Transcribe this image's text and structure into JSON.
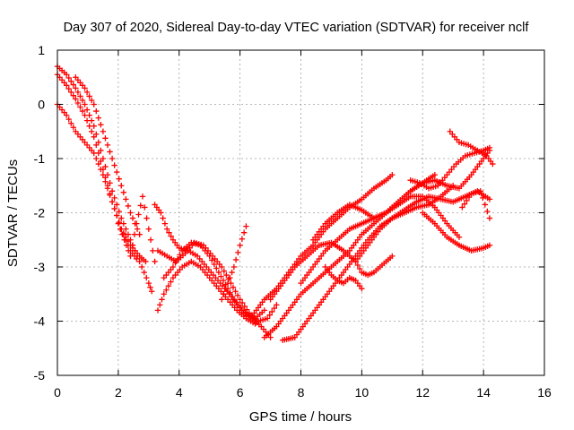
{
  "chart_data": {
    "type": "scatter",
    "title": "Day 307 of 2020, Sidereal Day-to-day VTEC variation (SDTVAR) for receiver nclf",
    "xlabel": "GPS time / hours",
    "ylabel": "SDTVAR / TECUs",
    "xlim": [
      0,
      16
    ],
    "ylim": [
      -5,
      1
    ],
    "xticks": [
      0,
      2,
      4,
      6,
      8,
      10,
      12,
      14,
      16
    ],
    "yticks": [
      1,
      0,
      -1,
      -2,
      -3,
      -4,
      -5
    ],
    "grid": true,
    "marker": "+",
    "color": "#ff0000",
    "series": [
      {
        "x": [
          0.0,
          0.3,
          0.6,
          0.9,
          1.2,
          1.5,
          1.8,
          2.1,
          2.4,
          2.7,
          3.0,
          3.1
        ],
        "y": [
          0.7,
          0.55,
          0.3,
          0.0,
          -0.4,
          -1.0,
          -1.6,
          -2.1,
          -2.5,
          -2.9,
          -3.3,
          -3.45
        ]
      },
      {
        "x": [
          0.0,
          0.3,
          0.6,
          0.9,
          1.2,
          1.5,
          1.8,
          2.1,
          2.4,
          2.7,
          2.9
        ],
        "y": [
          0.55,
          0.35,
          0.1,
          -0.2,
          -0.6,
          -1.2,
          -1.8,
          -2.3,
          -2.6,
          -2.8,
          -2.9
        ]
      },
      {
        "x": [
          0.0,
          0.3,
          0.6,
          0.9,
          1.2,
          1.5,
          1.8,
          2.1,
          2.4,
          2.6
        ],
        "y": [
          0.0,
          -0.2,
          -0.5,
          -0.7,
          -0.9,
          -1.3,
          -1.8,
          -2.3,
          -2.7,
          -2.85
        ]
      },
      {
        "x": [
          0.6,
          0.9,
          1.2,
          1.5,
          1.8,
          2.1,
          2.4,
          2.7
        ],
        "y": [
          0.5,
          0.3,
          0.0,
          -0.5,
          -1.0,
          -1.5,
          -2.0,
          -2.4
        ]
      },
      {
        "x": [
          2.0,
          2.2,
          2.4,
          2.6,
          2.8,
          3.0,
          3.2
        ],
        "y": [
          -2.2,
          -2.5,
          -2.8,
          -2.2,
          -1.7,
          -2.3,
          -2.9
        ]
      },
      {
        "x": [
          3.2,
          3.4,
          3.6,
          3.8,
          4.0,
          4.3,
          4.6,
          4.9,
          5.2,
          5.5,
          5.8,
          6.1,
          6.4,
          6.7,
          7.0
        ],
        "y": [
          -1.85,
          -2.0,
          -2.3,
          -2.5,
          -2.65,
          -2.7,
          -2.8,
          -3.0,
          -3.2,
          -3.4,
          -3.6,
          -3.8,
          -3.95,
          -4.1,
          -4.3
        ]
      },
      {
        "x": [
          3.3,
          3.5,
          3.8,
          4.1,
          4.4,
          4.7,
          5.0,
          5.3,
          5.6,
          5.9,
          6.2,
          6.5
        ],
        "y": [
          -3.8,
          -3.5,
          -3.2,
          -3.0,
          -2.9,
          -3.0,
          -3.2,
          -3.4,
          -3.6,
          -3.8,
          -3.95,
          -4.05
        ]
      },
      {
        "x": [
          3.5,
          3.8,
          4.1,
          4.4,
          4.7,
          5.0,
          5.3,
          5.6,
          5.9,
          6.2,
          6.5,
          6.8
        ],
        "y": [
          -3.2,
          -3.0,
          -2.7,
          -2.55,
          -2.6,
          -2.8,
          -3.1,
          -3.4,
          -3.7,
          -3.9,
          -3.95,
          -3.8
        ]
      },
      {
        "x": [
          3.3,
          3.6,
          3.9,
          4.2,
          4.5,
          4.8,
          5.1,
          5.4,
          5.7,
          6.0,
          6.3,
          6.6,
          6.9,
          7.2
        ],
        "y": [
          -2.7,
          -2.8,
          -2.9,
          -2.75,
          -2.55,
          -2.6,
          -2.8,
          -3.0,
          -3.3,
          -3.6,
          -3.85,
          -4.0,
          -3.95,
          -3.7
        ]
      },
      {
        "x": [
          5.4,
          5.6,
          5.8,
          6.0,
          6.2
        ],
        "y": [
          -3.6,
          -3.3,
          -3.0,
          -2.6,
          -2.25
        ]
      },
      {
        "x": [
          6.4,
          6.8,
          7.2,
          7.6,
          8.0,
          8.4,
          8.8,
          9.2,
          9.6,
          10.0,
          10.4,
          10.8,
          11.0
        ],
        "y": [
          -3.9,
          -3.6,
          -3.4,
          -3.1,
          -2.8,
          -2.6,
          -2.3,
          -2.1,
          -1.9,
          -1.75,
          -1.55,
          -1.4,
          -1.3
        ]
      },
      {
        "x": [
          6.8,
          7.2,
          7.6,
          8.0,
          8.4,
          8.8,
          9.2,
          9.6,
          10.0,
          10.4,
          10.8,
          11.2,
          11.6,
          12.0,
          12.4
        ],
        "y": [
          -4.3,
          -4.1,
          -3.8,
          -3.5,
          -3.3,
          -3.1,
          -2.9,
          -2.7,
          -2.4,
          -2.2,
          -2.0,
          -1.8,
          -1.6,
          -1.45,
          -1.3
        ]
      },
      {
        "x": [
          7.4,
          7.8,
          8.2,
          8.6,
          9.0,
          9.4,
          9.8,
          10.2,
          10.6,
          11.0,
          11.4,
          11.8,
          12.2,
          12.6,
          13.0,
          13.4,
          13.8,
          14.2
        ],
        "y": [
          -4.35,
          -4.3,
          -4.0,
          -3.7,
          -3.4,
          -3.1,
          -2.8,
          -2.5,
          -2.25,
          -2.1,
          -1.95,
          -1.8,
          -1.7,
          -1.75,
          -1.8,
          -1.7,
          -1.6,
          -1.75
        ]
      },
      {
        "x": [
          7.0,
          7.4,
          7.8,
          8.2,
          8.6,
          9.0,
          9.4,
          9.8,
          10.2,
          10.6,
          11.0,
          11.4,
          11.8,
          12.2,
          12.6,
          13.0
        ],
        "y": [
          -3.6,
          -3.3,
          -3.0,
          -2.8,
          -2.6,
          -2.55,
          -2.7,
          -2.9,
          -2.6,
          -2.3,
          -2.1,
          -2.0,
          -1.9,
          -1.85,
          -1.7,
          -1.5
        ]
      },
      {
        "x": [
          8.0,
          8.4,
          8.8,
          9.2,
          9.6,
          10.0,
          10.4,
          10.8,
          11.2,
          11.6,
          12.0,
          12.4,
          12.8,
          13.2
        ],
        "y": [
          -3.3,
          -3.0,
          -2.7,
          -2.5,
          -2.3,
          -2.2,
          -2.1,
          -2.0,
          -1.85,
          -1.7,
          -1.7,
          -1.9,
          -2.2,
          -2.45
        ]
      },
      {
        "x": [
          8.4,
          8.8,
          9.2,
          9.6,
          10.0,
          10.4,
          10.8,
          11.2,
          11.6,
          12.0,
          12.4,
          12.8,
          13.2,
          13.6,
          14.0,
          14.2
        ],
        "y": [
          -2.5,
          -2.2,
          -2.0,
          -1.85,
          -1.95,
          -2.1,
          -2.0,
          -1.8,
          -1.6,
          -1.45,
          -1.4,
          -1.5,
          -1.55,
          -1.3,
          -1.0,
          -0.85
        ]
      },
      {
        "x": [
          11.6,
          11.9,
          12.2,
          12.5,
          12.8,
          13.1,
          13.4,
          13.7,
          14.0,
          14.2
        ],
        "y": [
          -1.4,
          -1.45,
          -1.55,
          -1.5,
          -1.3,
          -1.1,
          -0.95,
          -0.9,
          -0.85,
          -0.8
        ]
      },
      {
        "x": [
          12.0,
          12.4,
          12.8,
          13.2,
          13.6,
          14.0,
          14.2
        ],
        "y": [
          -2.0,
          -2.2,
          -2.45,
          -2.6,
          -2.7,
          -2.65,
          -2.6
        ]
      },
      {
        "x": [
          12.9,
          13.2,
          13.5,
          13.8,
          14.1,
          14.3
        ],
        "y": [
          -0.5,
          -0.7,
          -0.75,
          -0.85,
          -0.95,
          -1.1
        ]
      },
      {
        "x": [
          13.3,
          13.6,
          13.9,
          14.2
        ],
        "y": [
          -1.9,
          -1.65,
          -1.6,
          -2.1
        ]
      },
      {
        "x": [
          9.8,
          10.0,
          10.2,
          10.4,
          10.6,
          10.8,
          11.0
        ],
        "y": [
          -2.9,
          -3.1,
          -3.15,
          -3.1,
          -3.0,
          -2.9,
          -2.8
        ]
      },
      {
        "x": [
          8.8,
          9.0,
          9.2,
          9.4,
          9.6,
          9.8,
          10.0
        ],
        "y": [
          -3.0,
          -3.15,
          -3.25,
          -3.3,
          -3.2,
          -3.25,
          -3.4
        ]
      }
    ]
  }
}
